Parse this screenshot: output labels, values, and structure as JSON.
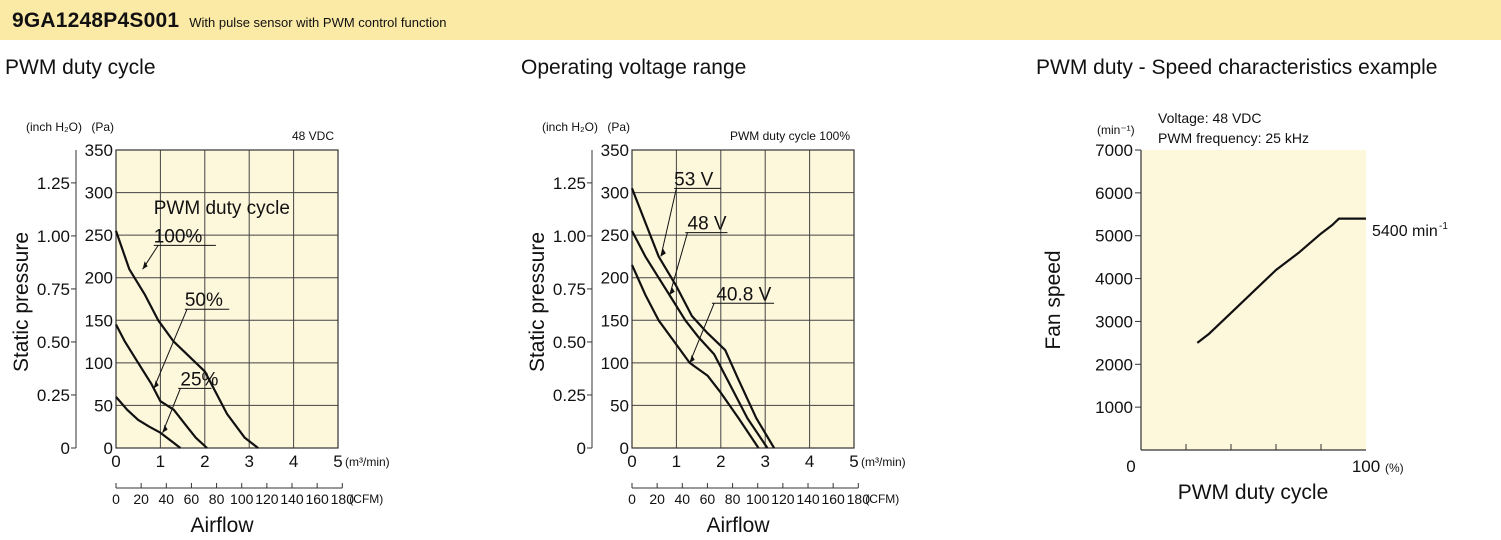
{
  "header": {
    "model": "9GA1248P4S001",
    "subtitle": "With pulse sensor with PWM control function"
  },
  "chart_data": [
    {
      "type": "line",
      "title": "PWM duty cycle",
      "note": "48 VDC",
      "legend_title": "PWM duty cycle",
      "ylabel": "Static pressure",
      "xlabel": "Airflow",
      "y_unit_pa": "(Pa)",
      "y_unit_inch": "(inch H₂O)",
      "x_unit_m3": "(m³/min)",
      "x_unit_cfm": "(CFM)",
      "xlim": [
        0,
        5
      ],
      "ylim": [
        0,
        350
      ],
      "x_ticks": [
        "0",
        "1",
        "2",
        "3",
        "4",
        "5"
      ],
      "y_ticks_pa": [
        "0",
        "50",
        "100",
        "150",
        "200",
        "250",
        "300",
        "350"
      ],
      "y_ticks_inch": [
        "0",
        "0.25",
        "0.50",
        "0.75",
        "1.00",
        "1.25"
      ],
      "cfm_ticks": [
        "0",
        "20",
        "40",
        "60",
        "80",
        "100",
        "120",
        "140",
        "160",
        "180"
      ],
      "grid": true,
      "series": [
        {
          "name": "100%",
          "x": [
            0,
            0.3,
            0.65,
            0.95,
            1.3,
            1.6,
            2.0,
            2.2,
            2.5,
            2.9,
            3.2
          ],
          "y": [
            255,
            210,
            180,
            150,
            125,
            110,
            90,
            70,
            40,
            12,
            0
          ]
        },
        {
          "name": "50%",
          "x": [
            0,
            0.2,
            0.5,
            0.8,
            1.0,
            1.3,
            1.6,
            1.8,
            2.05
          ],
          "y": [
            145,
            125,
            100,
            75,
            55,
            45,
            25,
            12,
            0
          ]
        },
        {
          "name": "25%",
          "x": [
            0,
            0.25,
            0.5,
            0.75,
            1.0,
            1.2,
            1.45
          ],
          "y": [
            60,
            45,
            33,
            25,
            18,
            10,
            0
          ]
        }
      ]
    },
    {
      "type": "line",
      "title": "Operating voltage range",
      "note": "PWM duty cycle 100%",
      "ylabel": "Static pressure",
      "xlabel": "Airflow",
      "y_unit_pa": "(Pa)",
      "y_unit_inch": "(inch H₂O)",
      "x_unit_m3": "(m³/min)",
      "x_unit_cfm": "(CFM)",
      "xlim": [
        0,
        5
      ],
      "ylim": [
        0,
        350
      ],
      "x_ticks": [
        "0",
        "1",
        "2",
        "3",
        "4",
        "5"
      ],
      "y_ticks_pa": [
        "0",
        "50",
        "100",
        "150",
        "200",
        "250",
        "300",
        "350"
      ],
      "y_ticks_inch": [
        "0",
        "0.25",
        "0.50",
        "0.75",
        "1.00",
        "1.25"
      ],
      "cfm_ticks": [
        "0",
        "20",
        "40",
        "60",
        "80",
        "100",
        "120",
        "140",
        "160",
        "180"
      ],
      "grid": true,
      "series": [
        {
          "name": "53 V",
          "x": [
            0,
            0.3,
            0.6,
            1.0,
            1.35,
            1.7,
            2.1,
            2.4,
            2.8,
            3.2
          ],
          "y": [
            305,
            265,
            225,
            190,
            155,
            135,
            115,
            80,
            35,
            0
          ]
        },
        {
          "name": "48 V",
          "x": [
            0,
            0.3,
            0.6,
            0.9,
            1.2,
            1.5,
            1.85,
            2.2,
            2.6,
            3.05
          ],
          "y": [
            255,
            225,
            200,
            175,
            150,
            130,
            110,
            75,
            35,
            0
          ]
        },
        {
          "name": "40.8 V",
          "x": [
            0,
            0.3,
            0.6,
            0.95,
            1.3,
            1.7,
            2.0,
            2.4,
            2.85
          ],
          "y": [
            215,
            180,
            150,
            125,
            100,
            85,
            65,
            35,
            0
          ]
        }
      ]
    },
    {
      "type": "line",
      "title": "PWM duty - Speed characteristics example",
      "annotations": [
        "Voltage: 48 VDC",
        "PWM frequency: 25 kHz"
      ],
      "ylabel": "Fan speed",
      "xlabel": "PWM duty cycle",
      "y_unit": "(min⁻¹)",
      "x_unit": "(%)",
      "xlim": [
        0,
        100
      ],
      "ylim": [
        0,
        7000
      ],
      "x_ticks": [
        "0",
        "100"
      ],
      "y_ticks": [
        "1000",
        "2000",
        "3000",
        "4000",
        "5000",
        "6000",
        "7000"
      ],
      "grid": false,
      "end_label": "5400 min",
      "end_label_sup": "-1",
      "series": [
        {
          "name": "",
          "x": [
            25,
            30,
            40,
            50,
            60,
            70,
            80,
            85,
            88,
            100
          ],
          "y": [
            2500,
            2700,
            3200,
            3700,
            4200,
            4600,
            5050,
            5250,
            5400,
            5400
          ]
        }
      ]
    }
  ]
}
